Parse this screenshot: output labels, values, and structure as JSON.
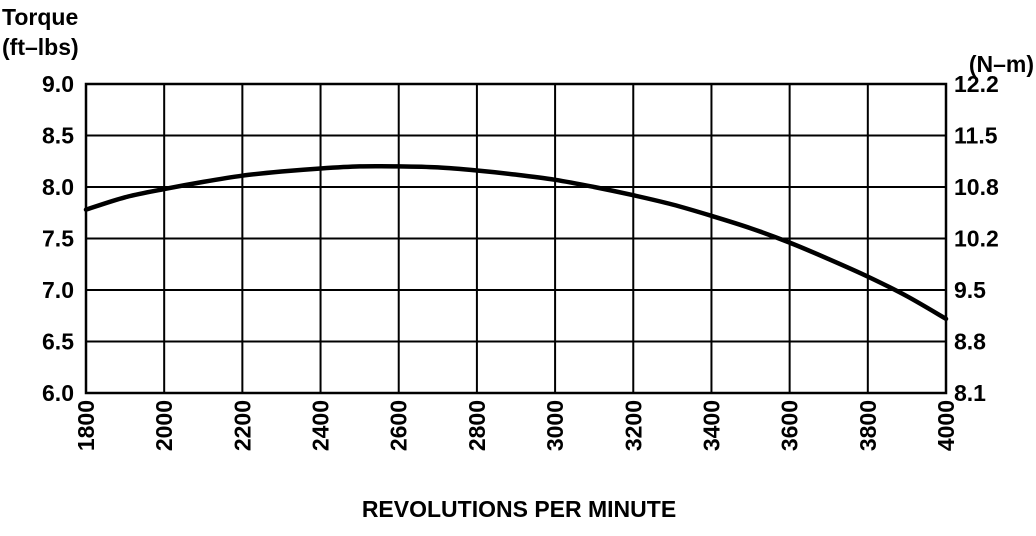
{
  "chart_data": {
    "type": "line",
    "title": "",
    "left_axis_label_line1": "Torque",
    "left_axis_label_line2": "(ft–lbs)",
    "right_axis_label": "(N–m)",
    "xlabel": "REVOLUTIONS PER MINUTE",
    "xlim": [
      1800,
      4000
    ],
    "ylim": [
      6.0,
      9.0
    ],
    "x_ticks": [
      "1800",
      "2000",
      "2200",
      "2400",
      "2600",
      "2800",
      "3000",
      "3200",
      "3400",
      "3600",
      "3800",
      "4000"
    ],
    "y_ticks_left": [
      "9.0",
      "8.5",
      "8.0",
      "7.5",
      "7.0",
      "6.5",
      "6.0"
    ],
    "y_ticks_right": [
      "12.2",
      "11.5",
      "10.8",
      "10.2",
      "9.5",
      "8.8",
      "8.1"
    ],
    "grid": true,
    "series": [
      {
        "x": [
          1800,
          1900,
          2000,
          2100,
          2200,
          2300,
          2400,
          2500,
          2600,
          2700,
          2800,
          2900,
          3000,
          3100,
          3200,
          3300,
          3400,
          3500,
          3600,
          3700,
          3800,
          3900,
          4000
        ],
        "y": [
          7.78,
          7.9,
          7.98,
          8.05,
          8.11,
          8.15,
          8.18,
          8.2,
          8.2,
          8.19,
          8.16,
          8.12,
          8.07,
          8.0,
          7.92,
          7.83,
          7.72,
          7.6,
          7.46,
          7.3,
          7.13,
          6.94,
          6.72
        ]
      }
    ],
    "colors": {
      "background": "#ffffff",
      "ink": "#000000"
    }
  }
}
